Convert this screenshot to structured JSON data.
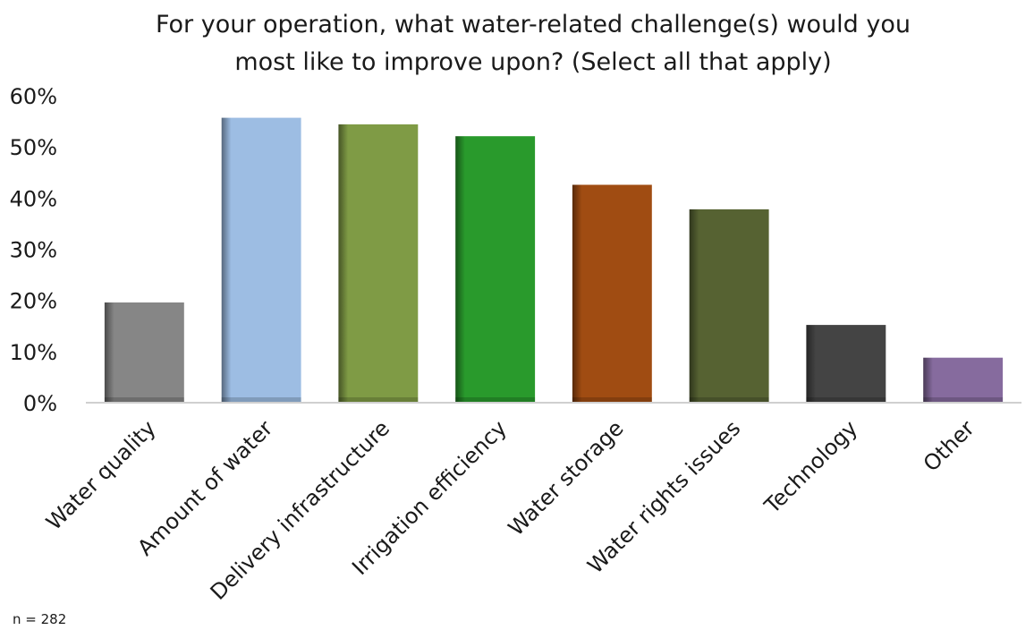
{
  "chart_data": {
    "type": "bar",
    "title": [
      "For your operation, what water-related challenge(s) would you",
      "most like to improve upon? (Select all that apply)"
    ],
    "xlabel": "",
    "ylabel": "",
    "ylim": [
      0,
      60
    ],
    "yticks": [
      0,
      10,
      20,
      30,
      40,
      50,
      60
    ],
    "y_unit": "%",
    "grid": false,
    "categories": [
      "Water quality",
      "Amount of water",
      "Delivery infrastructure",
      "Irrigation efficiency",
      "Water storage",
      "Water rights issues",
      "Technology",
      "Other"
    ],
    "values": [
      19.6,
      55.7,
      54.4,
      52.1,
      42.6,
      37.8,
      15.2,
      8.8
    ],
    "colors": [
      "#868686",
      "#9dbde3",
      "#7f9b45",
      "#299a2c",
      "#a04c12",
      "#566232",
      "#444444",
      "#866b9e"
    ]
  },
  "footnote": "n = 282"
}
